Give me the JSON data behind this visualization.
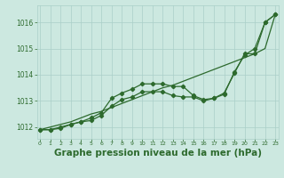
{
  "x": [
    0,
    1,
    2,
    3,
    4,
    5,
    6,
    7,
    8,
    9,
    10,
    11,
    12,
    13,
    14,
    15,
    16,
    17,
    18,
    19,
    20,
    21,
    22,
    23
  ],
  "line_straight": [
    1011.9,
    1012.0,
    1012.1,
    1012.2,
    1012.35,
    1012.5,
    1012.6,
    1012.75,
    1012.9,
    1013.05,
    1013.2,
    1013.35,
    1013.5,
    1013.6,
    1013.75,
    1013.9,
    1014.05,
    1014.2,
    1014.35,
    1014.5,
    1014.65,
    1014.8,
    1015.0,
    1016.3
  ],
  "line_upper": [
    1011.9,
    1011.9,
    1011.95,
    1012.1,
    1012.2,
    1012.35,
    1012.55,
    1013.1,
    1013.3,
    1013.45,
    1013.65,
    1013.65,
    1013.65,
    1013.55,
    1013.55,
    1013.2,
    1013.05,
    1013.1,
    1013.3,
    1014.05,
    1014.8,
    1014.8,
    1016.0,
    1016.3
  ],
  "line_lower": [
    1011.9,
    1011.9,
    1012.0,
    1012.1,
    1012.2,
    1012.25,
    1012.45,
    1012.8,
    1013.05,
    1013.15,
    1013.35,
    1013.35,
    1013.35,
    1013.2,
    1013.15,
    1013.15,
    1013.0,
    1013.1,
    1013.25,
    1014.1,
    1014.75,
    1015.0,
    1016.0,
    1016.3
  ],
  "line_color": "#2d6a2d",
  "bg_color": "#cce8e0",
  "grid_color": "#aacfc8",
  "ylabel_ticks": [
    1012,
    1013,
    1014,
    1015,
    1016
  ],
  "xlabel": "Graphe pression niveau de la mer (hPa)",
  "ylim": [
    1011.55,
    1016.65
  ],
  "xlim": [
    -0.3,
    23.3
  ]
}
